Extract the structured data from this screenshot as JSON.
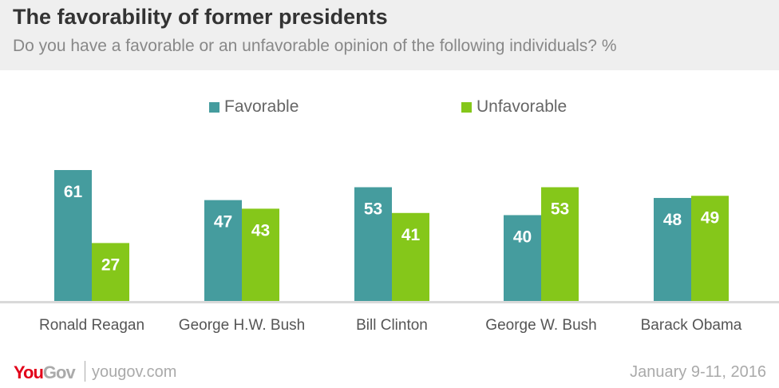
{
  "header": {
    "title": "The favorability of former presidents",
    "subtitle": "Do you have a favorable or an unfavorable opinion of the following individuals? %"
  },
  "chart_data": {
    "type": "bar",
    "title": "The favorability of former presidents",
    "categories": [
      "Ronald Reagan",
      "George H.W. Bush",
      "Bill Clinton",
      "George W. Bush",
      "Barack Obama"
    ],
    "series": [
      {
        "name": "Favorable",
        "color": "#459c9e",
        "values": [
          61,
          47,
          53,
          40,
          48
        ]
      },
      {
        "name": "Unfavorable",
        "color": "#85c71a",
        "values": [
          27,
          43,
          41,
          53,
          49
        ]
      }
    ],
    "ylim": [
      0,
      70
    ],
    "legend": "top-center",
    "grid": false
  },
  "footer": {
    "brand_you": "You",
    "brand_gov": "Gov",
    "site": "yougov.com",
    "date": "January 9-11, 2016"
  }
}
